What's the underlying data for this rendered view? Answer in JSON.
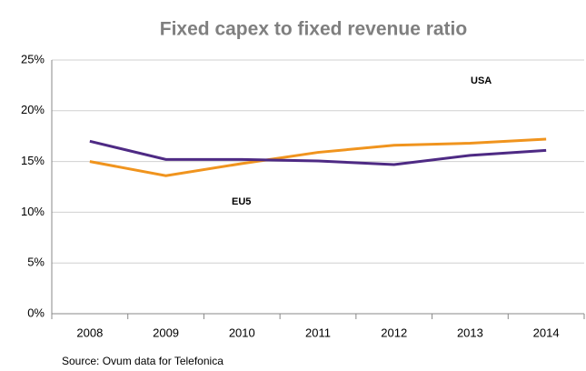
{
  "chart_data": {
    "type": "line",
    "title": "Fixed capex to fixed revenue ratio",
    "categories": [
      "2008",
      "2009",
      "2010",
      "2011",
      "2012",
      "2013",
      "2014"
    ],
    "series": [
      {
        "name": "USA",
        "color": "#f0941e",
        "values": [
          15.0,
          13.6,
          14.8,
          15.9,
          16.6,
          16.8,
          17.2
        ]
      },
      {
        "name": "EU5",
        "color": "#4e2a84",
        "values": [
          17.0,
          15.2,
          15.2,
          15.05,
          14.7,
          15.6,
          16.1
        ]
      }
    ],
    "ylim": [
      0,
      25
    ],
    "yticks": [
      {
        "value": 0,
        "label": "0%"
      },
      {
        "value": 5,
        "label": "5%"
      },
      {
        "value": 10,
        "label": "10%"
      },
      {
        "value": 15,
        "label": "15%"
      },
      {
        "value": 20,
        "label": "20%"
      },
      {
        "value": 25,
        "label": "25%"
      }
    ],
    "grid": true,
    "source": "Source: Ovum data for Telefonica"
  }
}
